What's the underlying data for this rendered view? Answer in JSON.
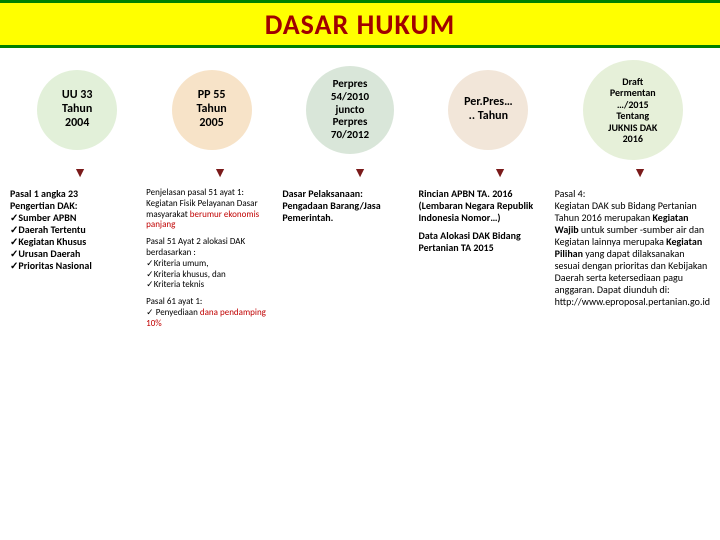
{
  "title": "DASAR HUKUM",
  "colors": {
    "title_bg": "#ffff00",
    "title_text": "#a00000",
    "border_green": "#008000",
    "red_text": "#c00000",
    "arrow": "#7a1a1a"
  },
  "circles": [
    {
      "label": "UU 33\nTahun\n2004",
      "bg": "#e2f0d9",
      "size": "small"
    },
    {
      "label": "PP 55\nTahun\n2005",
      "bg": "#f7e3c8",
      "size": "small"
    },
    {
      "label": "Perpres\n54/2010\njuncto\nPerpres\n70/2012",
      "bg": "#d9e6d9",
      "size": "med"
    },
    {
      "label": "Per.Pres…\n.. Tahun",
      "bg": "#f2e6d9",
      "size": "small"
    },
    {
      "label": "Draft\nPermentan\n…/2015\nTentang\nJUKNIS DAK\n2016",
      "bg": "#e6f0d9",
      "size": "large"
    }
  ],
  "columns": [
    {
      "lines": [
        {
          "t": "Pasal 1 angka 23",
          "b": true
        },
        {
          "t": "Pengertian DAK:",
          "b": true
        },
        {
          "t": "Sumber APBN",
          "b": true,
          "check": true
        },
        {
          "t": "Daerah Tertentu",
          "b": true,
          "check": true
        },
        {
          "t": "Kegiatan Khusus",
          "b": true,
          "check": true
        },
        {
          "t": "Urusan Daerah",
          "b": true,
          "check": true
        },
        {
          "t": "Prioritas Nasional",
          "b": true,
          "check": true
        }
      ]
    },
    {
      "blocks": [
        {
          "html": "Penjelasan pasal 51 ayat 1:<br>Kegiatan Fisik Pelayanan Dasar masyarakat <span class='red'>berumur ekonomis panjang</span>",
          "small": true
        },
        {
          "html": "Pasal 51 Ayat 2 alokasi DAK berdasarkan :<br><span class='check'></span>Kriteria umum,<br><span class='check'></span>Kriteria khusus, dan<br><span class='check'></span>Kriteria teknis",
          "small": true
        },
        {
          "html": "Pasal 61 ayat 1:<br><span class='check'></span> Penyediaan <span class='red'>dana pendamping 10%</span>",
          "small": true
        }
      ]
    },
    {
      "html": "<span class='bold-line'>Dasar Pelaksanaan: Pengadaan Barang/Jasa Pemerintah.</span>"
    },
    {
      "blocks": [
        {
          "html": "<span class='bold-line'>Rincian APBN TA. 2016 (Lembaran Negara Republik Indonesia Nomor…)</span>"
        },
        {
          "html": "<span class='bold-line'>Data Alokasi DAK Bidang Pertanian TA 2015</span>"
        }
      ]
    },
    {
      "html": "Pasal 4:<br>Kegiatan DAK sub Bidang Pertanian Tahun 2016 merupakan <span class='bold-line'>Kegiatan Wajib</span> untuk sumber -sumber air dan Kegiatan lainnya merupaka <span class='bold-line'>Kegiatan Pilihan</span> yang dapat dilaksanakan sesuai dengan prioritas dan Kebijakan Daerah serta ketersediaan pagu anggaran. Dapat diunduh di: http://www.eproposal.pertanian.go.id"
    }
  ]
}
